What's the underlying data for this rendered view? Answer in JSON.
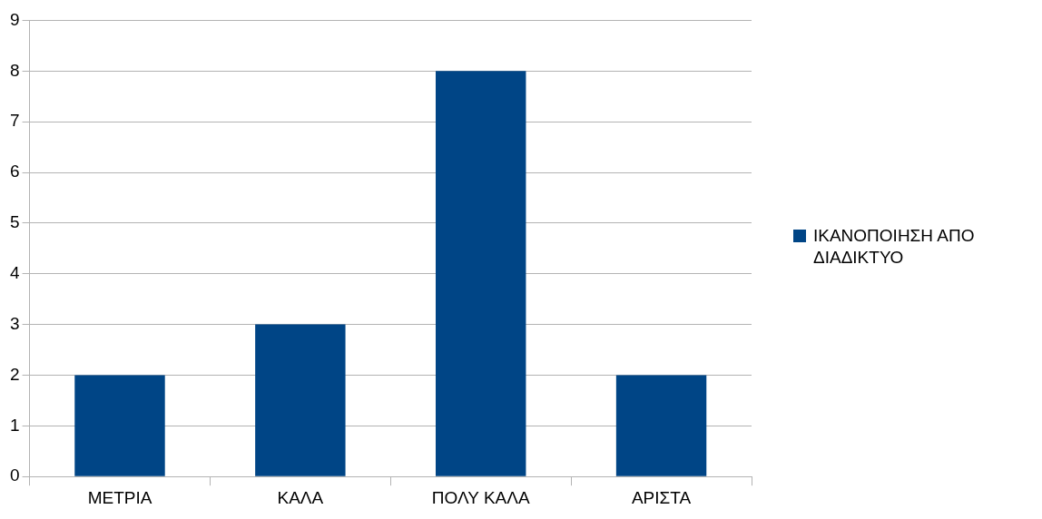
{
  "chart_data": {
    "type": "bar",
    "categories": [
      "ΜΕΤΡΙΑ",
      "ΚΑΛΑ",
      "ΠΟΛΥ ΚΑΛΑ",
      "ΑΡΙΣΤΑ"
    ],
    "series": [
      {
        "name": "ΙΚΑΝΟΠΟΙΗΣΗ ΑΠΟ ΔΙΑΔΙΚΤΥΟ",
        "color": "#004586",
        "values": [
          2,
          3,
          8,
          2
        ]
      }
    ],
    "ylim": [
      0,
      9
    ],
    "yticks": [
      0,
      1,
      2,
      3,
      4,
      5,
      6,
      7,
      8,
      9
    ],
    "grid": "y",
    "legend": "right"
  }
}
